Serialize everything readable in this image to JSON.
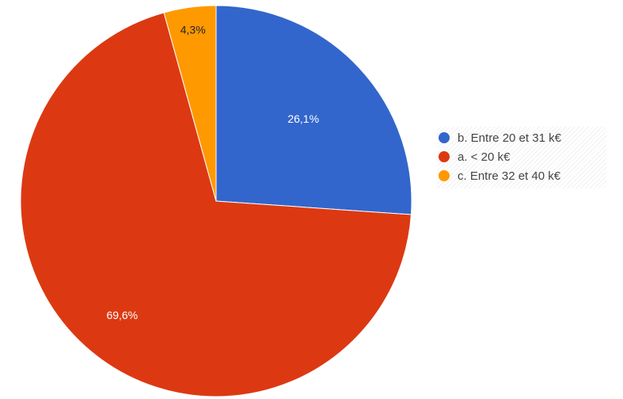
{
  "chart_data": {
    "type": "pie",
    "title": "",
    "slices": [
      {
        "label": "b. Entre 20 et 31 k€",
        "value": 26.1,
        "display": "26,1%",
        "color": "#3366cc",
        "label_color": "#ffffff"
      },
      {
        "label": "a. < 20 k€",
        "value": 69.6,
        "display": "69,6%",
        "color": "#dc3912",
        "label_color": "#ffffff"
      },
      {
        "label": "c. Entre 32 et 40 k€",
        "value": 4.3,
        "display": "4,3%",
        "color": "#ff9900",
        "label_color": "#222222"
      }
    ],
    "start_angle": "top, clockwise",
    "legend_position": "right"
  },
  "legend": {
    "items": [
      {
        "label": "b. Entre 20 et 31 k€",
        "color": "#3366cc"
      },
      {
        "label": "a. < 20 k€",
        "color": "#dc3912"
      },
      {
        "label": "c. Entre 32 et 40 k€",
        "color": "#ff9900"
      }
    ]
  }
}
